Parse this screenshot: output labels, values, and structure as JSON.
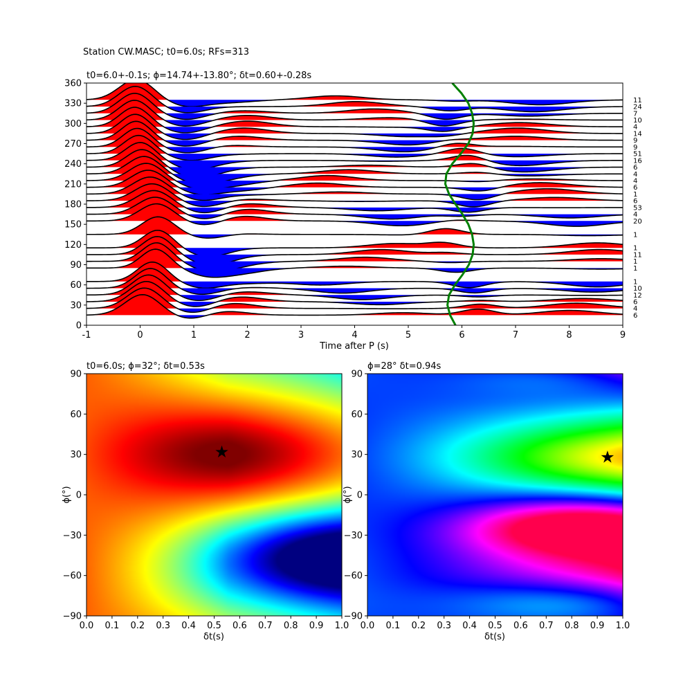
{
  "figure": {
    "suptitle": "Station CW.MASC; t0=6.0s; RFs=313"
  },
  "chart_data": [
    {
      "type": "line",
      "role": "receiver-function-traces",
      "title": "t0=6.0+-0.1s; ϕ=14.74+-13.80°; δt=0.60+-0.28s",
      "xlabel": "Time after P (s)",
      "ylabel": "",
      "xlim": [
        -1,
        9
      ],
      "ylim": [
        0,
        360
      ],
      "xticks": [
        "-1",
        "0",
        "1",
        "2",
        "3",
        "4",
        "5",
        "6",
        "7",
        "8",
        "9"
      ],
      "yticks": [
        "0",
        "30",
        "60",
        "90",
        "120",
        "150",
        "180",
        "210",
        "240",
        "270",
        "300",
        "330",
        "360"
      ],
      "positive_fill": "#ff0000",
      "negative_fill": "#0000ff",
      "trace_color": "#000000",
      "baz_counts": [
        {
          "baz": 335,
          "count": "11"
        },
        {
          "baz": 325,
          "count": "24"
        },
        {
          "baz": 315,
          "count": "7"
        },
        {
          "baz": 305,
          "count": "10"
        },
        {
          "baz": 295,
          "count": "4"
        },
        {
          "baz": 285,
          "count": "14"
        },
        {
          "baz": 275,
          "count": "9"
        },
        {
          "baz": 265,
          "count": "9"
        },
        {
          "baz": 255,
          "count": "51"
        },
        {
          "baz": 245,
          "count": "16"
        },
        {
          "baz": 235,
          "count": "6"
        },
        {
          "baz": 225,
          "count": "4"
        },
        {
          "baz": 215,
          "count": "4"
        },
        {
          "baz": 205,
          "count": "6"
        },
        {
          "baz": 195,
          "count": "1"
        },
        {
          "baz": 185,
          "count": "6"
        },
        {
          "baz": 175,
          "count": "53"
        },
        {
          "baz": 165,
          "count": "4"
        },
        {
          "baz": 155,
          "count": "20"
        },
        {
          "baz": 135,
          "count": "1"
        },
        {
          "baz": 115,
          "count": "1"
        },
        {
          "baz": 105,
          "count": "11"
        },
        {
          "baz": 95,
          "count": "1"
        },
        {
          "baz": 85,
          "count": "1"
        },
        {
          "baz": 65,
          "count": "1"
        },
        {
          "baz": 55,
          "count": "10"
        },
        {
          "baz": 45,
          "count": "12"
        },
        {
          "baz": 35,
          "count": "6"
        },
        {
          "baz": 25,
          "count": "4"
        },
        {
          "baz": 15,
          "count": "6"
        }
      ],
      "moveout_curve": {
        "color": "#008000",
        "t0": 6.0,
        "amplitude": 0.45,
        "phase_deg": 14.74,
        "x": [
          5.88,
          5.78,
          5.73,
          5.76,
          5.87,
          6.01,
          6.13,
          6.2,
          6.22,
          6.19,
          6.12,
          6.01,
          5.88,
          5.76,
          5.69,
          5.71,
          5.82,
          5.98,
          6.12,
          6.2,
          6.22,
          6.19,
          6.12,
          5.99,
          5.82
        ],
        "y": [
          0,
          15,
          30,
          45,
          60,
          75,
          90,
          105,
          120,
          135,
          150,
          165,
          180,
          195,
          210,
          225,
          240,
          255,
          270,
          285,
          300,
          315,
          330,
          345,
          360
        ]
      }
    },
    {
      "type": "heatmap",
      "role": "grid-search-left",
      "title": "t0=6.0s; ϕ=32°; δt=0.53s",
      "xlabel": "δt(s)",
      "ylabel": "ϕ(°)",
      "xlim": [
        0,
        1
      ],
      "ylim": [
        -90,
        90
      ],
      "xticks": [
        "0.0",
        "0.1",
        "0.2",
        "0.3",
        "0.4",
        "0.5",
        "0.6",
        "0.7",
        "0.8",
        "0.9",
        "1.0"
      ],
      "yticks": [
        "−90",
        "−60",
        "−30",
        "0",
        "30",
        "60",
        "90"
      ],
      "colormap": "jet",
      "best": {
        "dt": 0.53,
        "phi": 32
      }
    },
    {
      "type": "heatmap",
      "role": "grid-search-right",
      "title": "ϕ=28° δt=0.94s",
      "xlabel": "δt(s)",
      "ylabel": "ϕ(°)",
      "xlim": [
        0,
        1
      ],
      "ylim": [
        -90,
        90
      ],
      "xticks": [
        "0.0",
        "0.1",
        "0.2",
        "0.3",
        "0.4",
        "0.5",
        "0.6",
        "0.7",
        "0.8",
        "0.9",
        "1.0"
      ],
      "yticks": [
        "−90",
        "−60",
        "−30",
        "0",
        "30",
        "60",
        "90"
      ],
      "colormap": "hsv",
      "best": {
        "dt": 0.94,
        "phi": 28
      }
    }
  ]
}
